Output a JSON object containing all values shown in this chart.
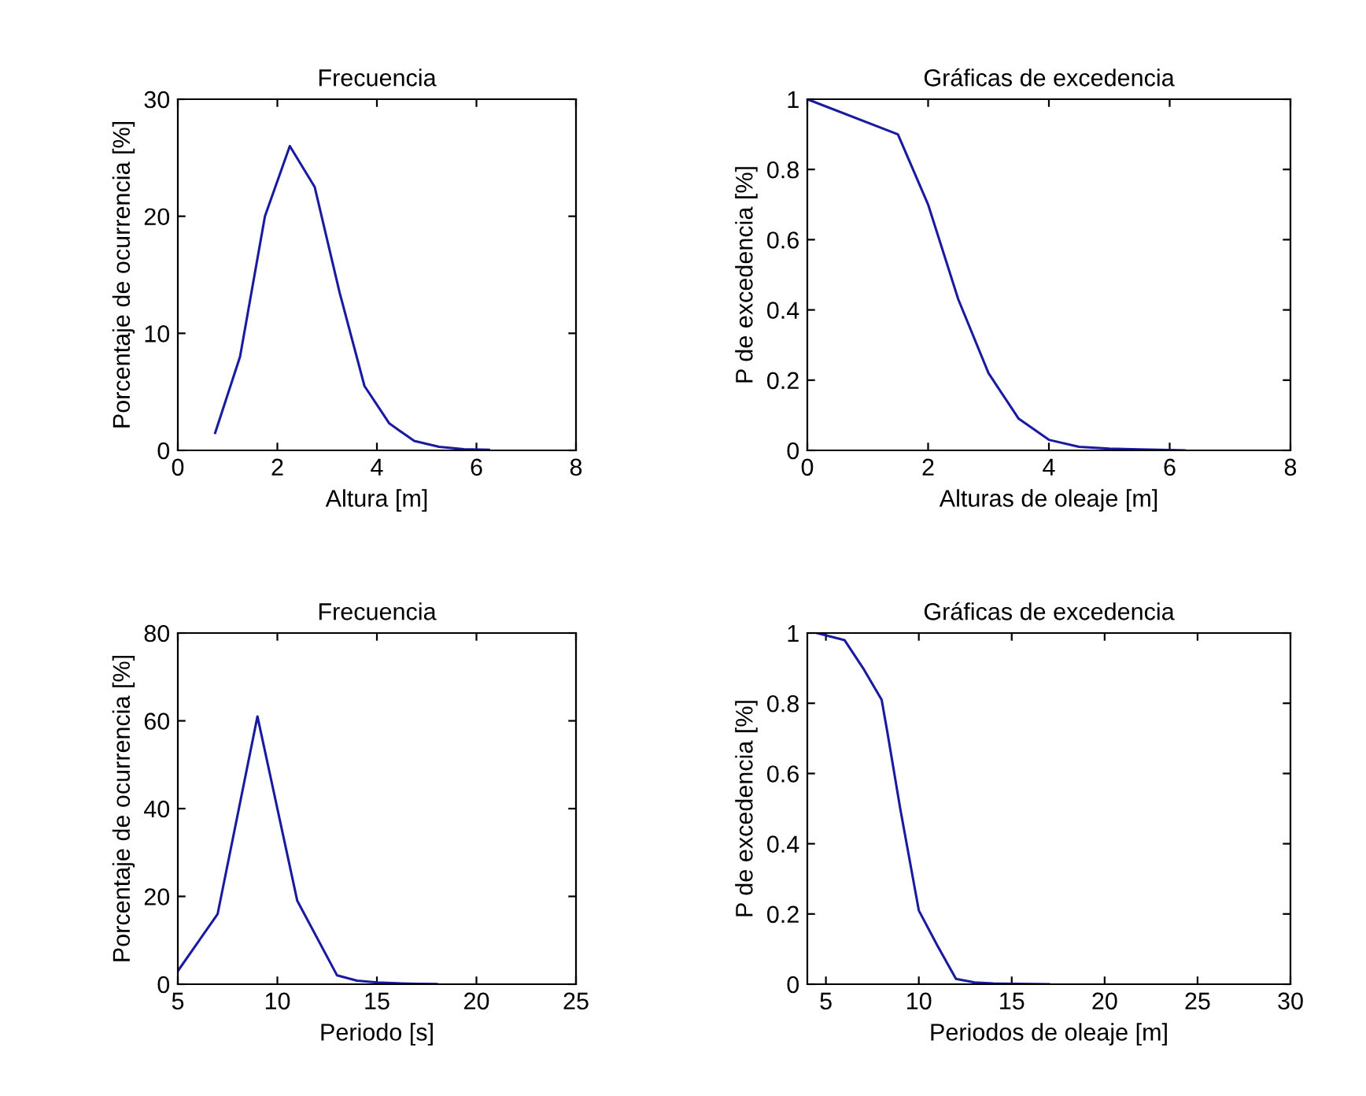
{
  "chart_data": [
    {
      "type": "line",
      "title": "Frecuencia",
      "xlabel": "Altura [m]",
      "ylabel": "Porcentaje de ocurrencia [%]",
      "xlim": [
        0,
        8
      ],
      "xticks": [
        0,
        2,
        4,
        6,
        8
      ],
      "ylim": [
        0,
        30
      ],
      "yticks": [
        0,
        10,
        20,
        30
      ],
      "grid": false,
      "legend": false,
      "series": [
        {
          "color": "#1a1aa0",
          "x": [
            0.75,
            1.25,
            1.75,
            2.25,
            2.75,
            3.25,
            3.75,
            4.25,
            4.75,
            5.25,
            5.75,
            6.25
          ],
          "values": [
            1.5,
            8,
            20,
            26,
            22.5,
            13.5,
            5.5,
            2.3,
            0.8,
            0.3,
            0.1,
            0.05
          ]
        }
      ]
    },
    {
      "type": "line",
      "title": "Gráficas de excedencia",
      "xlabel": "Alturas de oleaje [m]",
      "ylabel": "P de excedencia [%]",
      "xlim": [
        0,
        8
      ],
      "xticks": [
        0,
        2,
        4,
        6,
        8
      ],
      "ylim": [
        0,
        1
      ],
      "yticks": [
        0,
        0.2,
        0.4,
        0.6,
        0.8,
        1
      ],
      "grid": false,
      "legend": false,
      "series": [
        {
          "color": "#1a1aa0",
          "x": [
            0,
            1.5,
            2,
            2.5,
            3,
            3.5,
            4,
            4.5,
            5,
            5.5,
            6,
            6.25
          ],
          "values": [
            1,
            0.9,
            0.7,
            0.43,
            0.22,
            0.09,
            0.03,
            0.01,
            0.005,
            0.003,
            0.001,
            0
          ]
        }
      ]
    },
    {
      "type": "line",
      "title": "Frecuencia",
      "xlabel": "Periodo [s]",
      "ylabel": "Porcentaje de ocurrencia [%]",
      "xlim": [
        5,
        25
      ],
      "xticks": [
        5,
        10,
        15,
        20,
        25
      ],
      "ylim": [
        0,
        80
      ],
      "yticks": [
        0,
        20,
        40,
        60,
        80
      ],
      "grid": false,
      "legend": false,
      "series": [
        {
          "color": "#1a1aa0",
          "x": [
            5,
            7,
            9,
            11,
            13,
            14,
            15,
            16,
            17,
            18
          ],
          "values": [
            3,
            16,
            61,
            19,
            2,
            0.8,
            0.4,
            0.2,
            0.1,
            0.05
          ]
        }
      ]
    },
    {
      "type": "line",
      "title": "Gráficas de excedencia",
      "xlabel": "Periodos de oleaje [m]",
      "ylabel": "P de excedencia [%]",
      "xlim": [
        4,
        30
      ],
      "xticks": [
        5,
        10,
        15,
        20,
        25,
        30
      ],
      "ylim": [
        0,
        1
      ],
      "yticks": [
        0,
        0.2,
        0.4,
        0.6,
        0.8,
        1
      ],
      "grid": false,
      "legend": false,
      "series": [
        {
          "color": "#1a1aa0",
          "x": [
            4.5,
            6,
            7,
            8,
            8.3,
            9,
            10,
            11,
            12,
            13,
            14,
            17
          ],
          "values": [
            1,
            0.98,
            0.9,
            0.81,
            0.72,
            0.5,
            0.21,
            0.11,
            0.015,
            0.005,
            0.002,
            0
          ]
        }
      ]
    }
  ]
}
